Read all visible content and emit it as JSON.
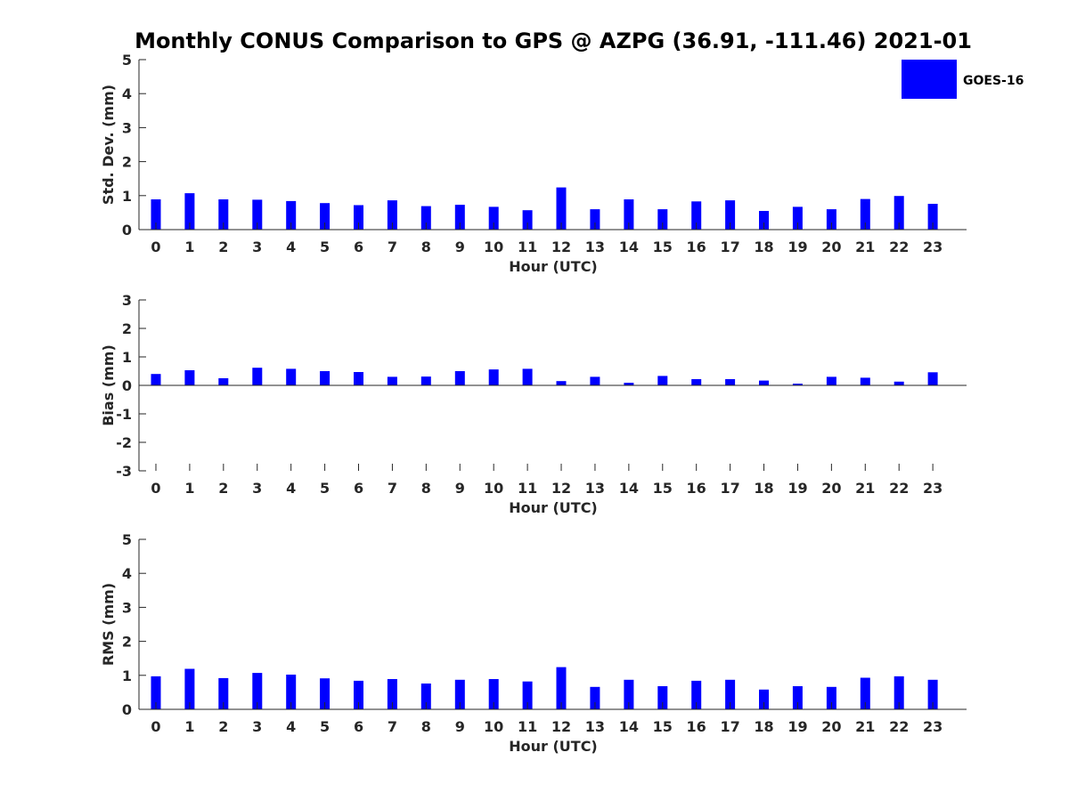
{
  "title": "Monthly CONUS Comparison to GPS @ AZPG (36.91, -111.46) 2021-01",
  "legend": {
    "label": "GOES-16",
    "color": "#0000ff",
    "position": "top-right"
  },
  "chart_data": [
    {
      "type": "bar",
      "xlabel": "Hour (UTC)",
      "ylabel": "Std. Dev. (mm)",
      "ylim": [
        0,
        5
      ],
      "yticks": [
        0,
        1,
        2,
        3,
        4,
        5
      ],
      "categories": [
        "0",
        "1",
        "2",
        "3",
        "4",
        "5",
        "6",
        "7",
        "8",
        "9",
        "10",
        "11",
        "12",
        "13",
        "14",
        "15",
        "16",
        "17",
        "18",
        "19",
        "20",
        "21",
        "22",
        "23"
      ],
      "series": [
        {
          "name": "GOES-16",
          "values": [
            0.89,
            1.07,
            0.89,
            0.88,
            0.84,
            0.78,
            0.72,
            0.86,
            0.69,
            0.73,
            0.67,
            0.57,
            1.24,
            0.6,
            0.89,
            0.6,
            0.83,
            0.86,
            0.55,
            0.67,
            0.6,
            0.9,
            0.99,
            0.76
          ]
        }
      ]
    },
    {
      "type": "bar",
      "xlabel": "Hour (UTC)",
      "ylabel": "Bias (mm)",
      "ylim": [
        -3,
        3
      ],
      "yticks": [
        -3,
        -2,
        -1,
        0,
        1,
        2,
        3
      ],
      "categories": [
        "0",
        "1",
        "2",
        "3",
        "4",
        "5",
        "6",
        "7",
        "8",
        "9",
        "10",
        "11",
        "12",
        "13",
        "14",
        "15",
        "16",
        "17",
        "18",
        "19",
        "20",
        "21",
        "22",
        "23"
      ],
      "series": [
        {
          "name": "GOES-16",
          "values": [
            0.4,
            0.53,
            0.25,
            0.62,
            0.58,
            0.5,
            0.47,
            0.3,
            0.31,
            0.5,
            0.56,
            0.58,
            0.15,
            0.3,
            0.09,
            0.33,
            0.22,
            0.22,
            0.17,
            0.06,
            0.3,
            0.27,
            0.13,
            0.46
          ]
        }
      ]
    },
    {
      "type": "bar",
      "xlabel": "Hour (UTC)",
      "ylabel": "RMS (mm)",
      "ylim": [
        0,
        5
      ],
      "yticks": [
        0,
        1,
        2,
        3,
        4,
        5
      ],
      "categories": [
        "0",
        "1",
        "2",
        "3",
        "4",
        "5",
        "6",
        "7",
        "8",
        "9",
        "10",
        "11",
        "12",
        "13",
        "14",
        "15",
        "16",
        "17",
        "18",
        "19",
        "20",
        "21",
        "22",
        "23"
      ],
      "series": [
        {
          "name": "GOES-16",
          "values": [
            0.97,
            1.19,
            0.92,
            1.07,
            1.02,
            0.91,
            0.84,
            0.89,
            0.76,
            0.87,
            0.89,
            0.82,
            1.24,
            0.66,
            0.87,
            0.68,
            0.84,
            0.87,
            0.58,
            0.68,
            0.66,
            0.93,
            0.97,
            0.87
          ]
        }
      ]
    }
  ]
}
